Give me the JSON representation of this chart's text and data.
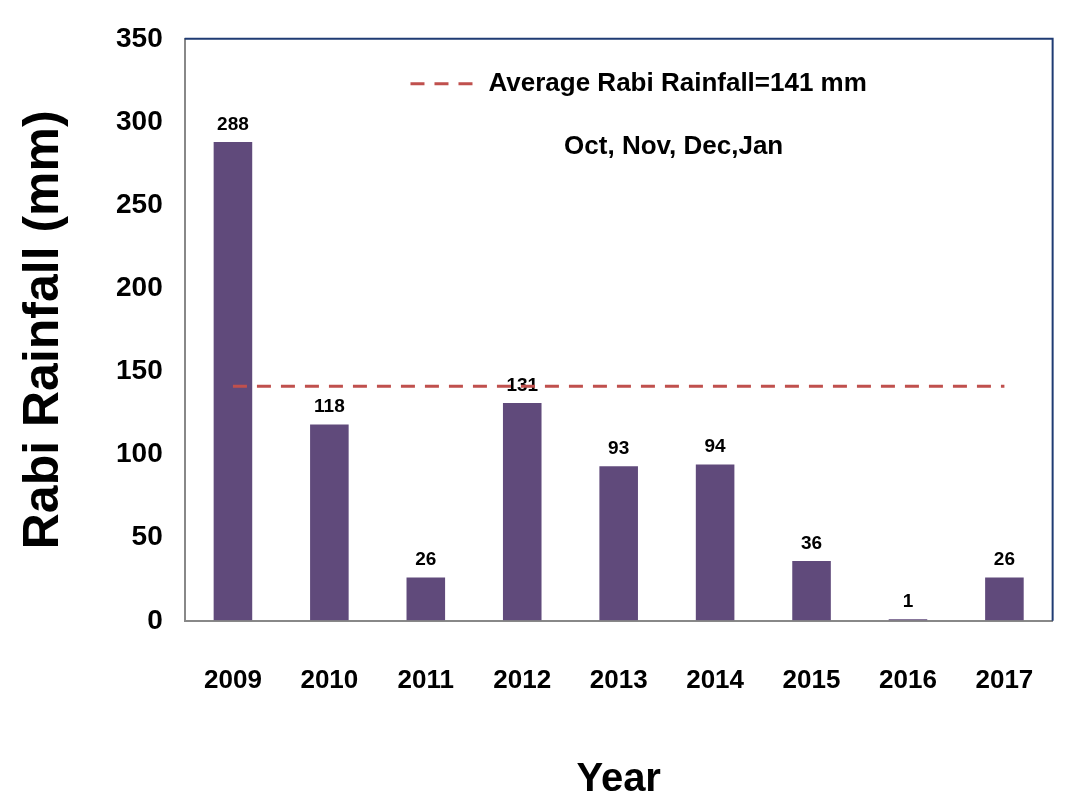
{
  "chart_data": {
    "type": "bar",
    "xlabel": "Year",
    "ylabel": "Rabi Rainfall (mm)",
    "categories": [
      "2009",
      "2010",
      "2011",
      "2012",
      "2013",
      "2014",
      "2015",
      "2016",
      "2017"
    ],
    "values": [
      288,
      118,
      26,
      131,
      93,
      94,
      36,
      1,
      26
    ],
    "color": "#604a7b",
    "ylim": [
      0,
      350
    ],
    "yticks": [
      0,
      50,
      100,
      150,
      200,
      250,
      300,
      350
    ],
    "grid": false,
    "data_labels": true,
    "ref_lines": [
      {
        "axis": "y",
        "value": 141,
        "label": "Average Rabi Rainfall=141 mm",
        "color": "#c0504d",
        "line_style": "dashed"
      }
    ],
    "annotations": [
      "Oct, Nov, Dec,Jan"
    ]
  }
}
